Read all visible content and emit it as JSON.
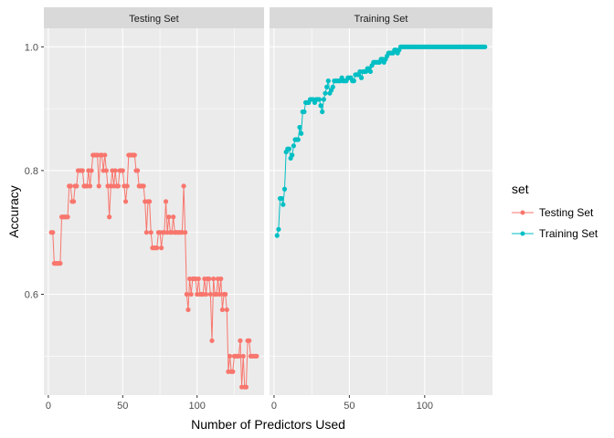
{
  "chart_data": {
    "type": "line",
    "xlabel": "Number of Predictors Used",
    "ylabel": "Accuracy",
    "xlim": [
      -3,
      145
    ],
    "ylim": [
      0.437,
      1.03
    ],
    "x_ticks": [
      0,
      50,
      100
    ],
    "y_ticks": [
      0.6,
      0.8,
      1.0
    ],
    "y_tick_labels": [
      "0.6",
      "0.8",
      "1.0"
    ],
    "grid": true,
    "legend": {
      "title": "set",
      "position": "right",
      "entries": [
        {
          "label": "Testing Set",
          "color": "#F8766D"
        },
        {
          "label": "Training Set",
          "color": "#00BFC4"
        }
      ]
    },
    "facets": [
      {
        "strip": "Testing Set",
        "series": [
          "Testing Set"
        ]
      },
      {
        "strip": "Training Set",
        "series": [
          "Training Set"
        ]
      }
    ],
    "series": [
      {
        "name": "Testing Set",
        "color": "#F8766D",
        "points": [
          [
            2,
            0.7
          ],
          [
            3,
            0.7
          ],
          [
            4,
            0.65
          ],
          [
            5,
            0.65
          ],
          [
            6,
            0.65
          ],
          [
            7,
            0.65
          ],
          [
            8,
            0.65
          ],
          [
            9,
            0.725
          ],
          [
            10,
            0.725
          ],
          [
            11,
            0.725
          ],
          [
            12,
            0.725
          ],
          [
            13,
            0.725
          ],
          [
            14,
            0.775
          ],
          [
            15,
            0.775
          ],
          [
            16,
            0.75
          ],
          [
            17,
            0.75
          ],
          [
            18,
            0.775
          ],
          [
            19,
            0.775
          ],
          [
            20,
            0.8
          ],
          [
            21,
            0.8
          ],
          [
            22,
            0.8
          ],
          [
            23,
            0.8
          ],
          [
            24,
            0.775
          ],
          [
            25,
            0.775
          ],
          [
            26,
            0.775
          ],
          [
            27,
            0.8
          ],
          [
            28,
            0.775
          ],
          [
            29,
            0.8
          ],
          [
            30,
            0.825
          ],
          [
            31,
            0.825
          ],
          [
            32,
            0.825
          ],
          [
            33,
            0.825
          ],
          [
            34,
            0.775
          ],
          [
            35,
            0.825
          ],
          [
            36,
            0.825
          ],
          [
            37,
            0.8
          ],
          [
            38,
            0.825
          ],
          [
            39,
            0.8
          ],
          [
            40,
            0.775
          ],
          [
            41,
            0.725
          ],
          [
            42,
            0.775
          ],
          [
            43,
            0.8
          ],
          [
            44,
            0.775
          ],
          [
            45,
            0.8
          ],
          [
            46,
            0.775
          ],
          [
            47,
            0.775
          ],
          [
            48,
            0.8
          ],
          [
            49,
            0.8
          ],
          [
            50,
            0.8
          ],
          [
            51,
            0.775
          ],
          [
            52,
            0.75
          ],
          [
            53,
            0.775
          ],
          [
            54,
            0.825
          ],
          [
            55,
            0.825
          ],
          [
            56,
            0.825
          ],
          [
            57,
            0.825
          ],
          [
            58,
            0.825
          ],
          [
            59,
            0.8
          ],
          [
            60,
            0.8
          ],
          [
            61,
            0.775
          ],
          [
            62,
            0.775
          ],
          [
            63,
            0.775
          ],
          [
            64,
            0.775
          ],
          [
            65,
            0.75
          ],
          [
            66,
            0.7
          ],
          [
            67,
            0.75
          ],
          [
            68,
            0.75
          ],
          [
            69,
            0.7
          ],
          [
            70,
            0.675
          ],
          [
            71,
            0.675
          ],
          [
            72,
            0.675
          ],
          [
            73,
            0.675
          ],
          [
            74,
            0.7
          ],
          [
            75,
            0.7
          ],
          [
            76,
            0.675
          ],
          [
            77,
            0.7
          ],
          [
            78,
            0.7
          ],
          [
            79,
            0.75
          ],
          [
            80,
            0.7
          ],
          [
            81,
            0.725
          ],
          [
            82,
            0.7
          ],
          [
            83,
            0.7
          ],
          [
            84,
            0.725
          ],
          [
            85,
            0.7
          ],
          [
            86,
            0.7
          ],
          [
            87,
            0.7
          ],
          [
            88,
            0.7
          ],
          [
            89,
            0.7
          ],
          [
            90,
            0.7
          ],
          [
            91,
            0.775
          ],
          [
            92,
            0.7
          ],
          [
            93,
            0.6
          ],
          [
            94,
            0.575
          ],
          [
            95,
            0.625
          ],
          [
            96,
            0.6
          ],
          [
            97,
            0.625
          ],
          [
            98,
            0.625
          ],
          [
            99,
            0.625
          ],
          [
            100,
            0.6
          ],
          [
            101,
            0.625
          ],
          [
            102,
            0.6
          ],
          [
            103,
            0.6
          ],
          [
            104,
            0.6
          ],
          [
            105,
            0.625
          ],
          [
            106,
            0.6
          ],
          [
            107,
            0.625
          ],
          [
            108,
            0.625
          ],
          [
            109,
            0.6
          ],
          [
            110,
            0.525
          ],
          [
            111,
            0.625
          ],
          [
            112,
            0.6
          ],
          [
            113,
            0.6
          ],
          [
            114,
            0.625
          ],
          [
            115,
            0.6
          ],
          [
            116,
            0.625
          ],
          [
            117,
            0.575
          ],
          [
            118,
            0.6
          ],
          [
            119,
            0.6
          ],
          [
            120,
            0.575
          ],
          [
            121,
            0.475
          ],
          [
            122,
            0.5
          ],
          [
            123,
            0.475
          ],
          [
            124,
            0.475
          ],
          [
            125,
            0.5
          ],
          [
            126,
            0.5
          ],
          [
            127,
            0.5
          ],
          [
            128,
            0.5
          ],
          [
            129,
            0.525
          ],
          [
            130,
            0.45
          ],
          [
            131,
            0.5
          ],
          [
            132,
            0.45
          ],
          [
            133,
            0.45
          ],
          [
            134,
            0.525
          ],
          [
            135,
            0.525
          ],
          [
            136,
            0.5
          ],
          [
            137,
            0.5
          ],
          [
            138,
            0.5
          ],
          [
            139,
            0.5
          ],
          [
            140,
            0.5
          ]
        ]
      },
      {
        "name": "Training Set",
        "color": "#00BFC4",
        "points": [
          [
            2,
            0.695
          ],
          [
            3,
            0.705
          ],
          [
            4,
            0.755
          ],
          [
            5,
            0.755
          ],
          [
            6,
            0.745
          ],
          [
            7,
            0.77
          ],
          [
            8,
            0.83
          ],
          [
            9,
            0.835
          ],
          [
            10,
            0.835
          ],
          [
            11,
            0.82
          ],
          [
            12,
            0.825
          ],
          [
            13,
            0.84
          ],
          [
            14,
            0.85
          ],
          [
            15,
            0.85
          ],
          [
            16,
            0.85
          ],
          [
            17,
            0.87
          ],
          [
            18,
            0.86
          ],
          [
            19,
            0.895
          ],
          [
            20,
            0.895
          ],
          [
            21,
            0.91
          ],
          [
            22,
            0.91
          ],
          [
            23,
            0.91
          ],
          [
            24,
            0.915
          ],
          [
            25,
            0.915
          ],
          [
            26,
            0.915
          ],
          [
            27,
            0.91
          ],
          [
            28,
            0.915
          ],
          [
            29,
            0.915
          ],
          [
            30,
            0.915
          ],
          [
            31,
            0.905
          ],
          [
            32,
            0.895
          ],
          [
            33,
            0.915
          ],
          [
            34,
            0.925
          ],
          [
            35,
            0.935
          ],
          [
            36,
            0.945
          ],
          [
            37,
            0.925
          ],
          [
            38,
            0.93
          ],
          [
            39,
            0.935
          ],
          [
            40,
            0.945
          ],
          [
            41,
            0.945
          ],
          [
            42,
            0.945
          ],
          [
            43,
            0.945
          ],
          [
            44,
            0.945
          ],
          [
            45,
            0.95
          ],
          [
            46,
            0.945
          ],
          [
            47,
            0.945
          ],
          [
            48,
            0.945
          ],
          [
            49,
            0.95
          ],
          [
            50,
            0.95
          ],
          [
            51,
            0.95
          ],
          [
            52,
            0.945
          ],
          [
            53,
            0.945
          ],
          [
            54,
            0.955
          ],
          [
            55,
            0.955
          ],
          [
            56,
            0.955
          ],
          [
            57,
            0.96
          ],
          [
            58,
            0.95
          ],
          [
            59,
            0.96
          ],
          [
            60,
            0.96
          ],
          [
            61,
            0.96
          ],
          [
            62,
            0.965
          ],
          [
            63,
            0.965
          ],
          [
            64,
            0.96
          ],
          [
            65,
            0.97
          ],
          [
            66,
            0.975
          ],
          [
            67,
            0.975
          ],
          [
            68,
            0.975
          ],
          [
            69,
            0.975
          ],
          [
            70,
            0.975
          ],
          [
            71,
            0.98
          ],
          [
            72,
            0.98
          ],
          [
            73,
            0.975
          ],
          [
            74,
            0.98
          ],
          [
            75,
            0.985
          ],
          [
            76,
            0.99
          ],
          [
            77,
            0.99
          ],
          [
            78,
            0.99
          ],
          [
            79,
            0.99
          ],
          [
            80,
            0.995
          ],
          [
            81,
            0.995
          ],
          [
            82,
            0.99
          ],
          [
            83,
            0.995
          ],
          [
            84,
            1.0
          ],
          [
            85,
            1.0
          ],
          [
            86,
            1.0
          ],
          [
            87,
            1.0
          ],
          [
            88,
            1.0
          ],
          [
            89,
            1.0
          ],
          [
            90,
            1.0
          ],
          [
            91,
            1.0
          ],
          [
            92,
            1.0
          ],
          [
            93,
            1.0
          ],
          [
            94,
            1.0
          ],
          [
            95,
            1.0
          ],
          [
            96,
            1.0
          ],
          [
            97,
            1.0
          ],
          [
            98,
            1.0
          ],
          [
            99,
            1.0
          ],
          [
            100,
            1.0
          ],
          [
            101,
            1.0
          ],
          [
            102,
            1.0
          ],
          [
            103,
            1.0
          ],
          [
            104,
            1.0
          ],
          [
            105,
            1.0
          ],
          [
            106,
            1.0
          ],
          [
            107,
            1.0
          ],
          [
            108,
            1.0
          ],
          [
            109,
            1.0
          ],
          [
            110,
            1.0
          ],
          [
            111,
            1.0
          ],
          [
            112,
            1.0
          ],
          [
            113,
            1.0
          ],
          [
            114,
            1.0
          ],
          [
            115,
            1.0
          ],
          [
            116,
            1.0
          ],
          [
            117,
            1.0
          ],
          [
            118,
            1.0
          ],
          [
            119,
            1.0
          ],
          [
            120,
            1.0
          ],
          [
            121,
            1.0
          ],
          [
            122,
            1.0
          ],
          [
            123,
            1.0
          ],
          [
            124,
            1.0
          ],
          [
            125,
            1.0
          ],
          [
            126,
            1.0
          ],
          [
            127,
            1.0
          ],
          [
            128,
            1.0
          ],
          [
            129,
            1.0
          ],
          [
            130,
            1.0
          ],
          [
            131,
            1.0
          ],
          [
            132,
            1.0
          ],
          [
            133,
            1.0
          ],
          [
            134,
            1.0
          ],
          [
            135,
            1.0
          ],
          [
            136,
            1.0
          ],
          [
            137,
            1.0
          ],
          [
            138,
            1.0
          ],
          [
            139,
            1.0
          ],
          [
            140,
            1.0
          ]
        ]
      }
    ]
  }
}
